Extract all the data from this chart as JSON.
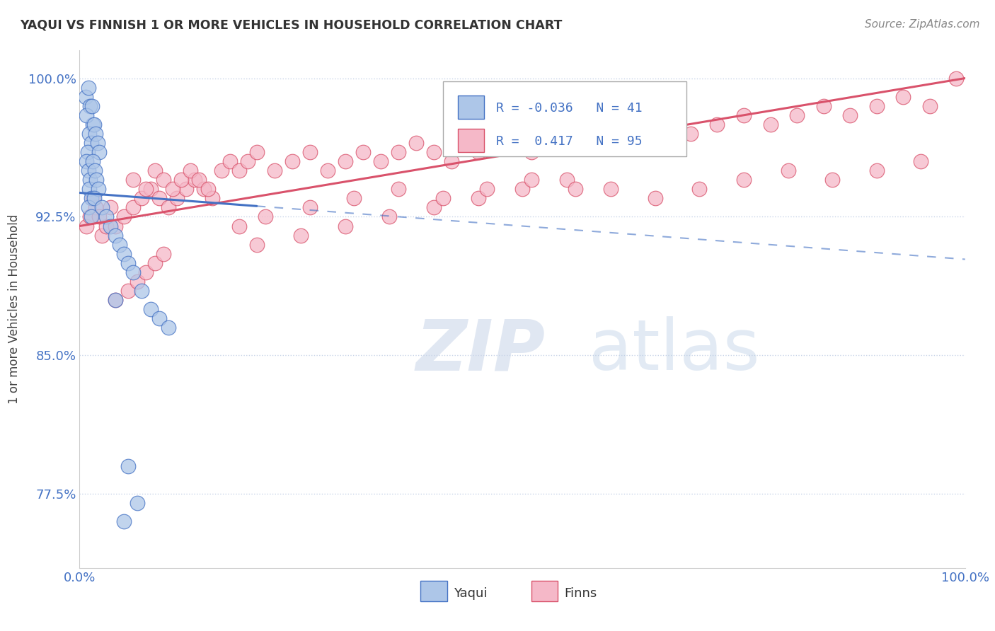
{
  "title": "YAQUI VS FINNISH 1 OR MORE VEHICLES IN HOUSEHOLD CORRELATION CHART",
  "source": "Source: ZipAtlas.com",
  "ylabel": "1 or more Vehicles in Household",
  "watermark_zip": "ZIP",
  "watermark_atlas": "atlas",
  "xlim": [
    0.0,
    1.0
  ],
  "ylim": [
    0.735,
    1.015
  ],
  "yticks": [
    0.775,
    0.85,
    0.925,
    1.0
  ],
  "ytick_labels": [
    "77.5%",
    "85.0%",
    "92.5%",
    "100.0%"
  ],
  "xtick_labels": [
    "0.0%",
    "100.0%"
  ],
  "legend_r_yaqui": "-0.036",
  "legend_n_yaqui": "41",
  "legend_r_finns": "0.417",
  "legend_n_finns": "95",
  "yaqui_color": "#adc6e8",
  "finns_color": "#f5b8c8",
  "yaqui_line_color": "#4472c4",
  "finns_line_color": "#d9526b",
  "background_color": "#ffffff",
  "grid_color": "#c8d4e8",
  "tick_color": "#4472c4",
  "yaqui_x": [
    0.007,
    0.01,
    0.012,
    0.015,
    0.008,
    0.011,
    0.013,
    0.009,
    0.014,
    0.016,
    0.018,
    0.02,
    0.022,
    0.008,
    0.01,
    0.012,
    0.015,
    0.011,
    0.013,
    0.017,
    0.019,
    0.021,
    0.01,
    0.013,
    0.016,
    0.025,
    0.03,
    0.035,
    0.04,
    0.045,
    0.05,
    0.055,
    0.06,
    0.07,
    0.08,
    0.09,
    0.1,
    0.04,
    0.055,
    0.065,
    0.05
  ],
  "yaqui_y": [
    0.99,
    0.995,
    0.985,
    0.975,
    0.98,
    0.97,
    0.965,
    0.96,
    0.985,
    0.975,
    0.97,
    0.965,
    0.96,
    0.955,
    0.95,
    0.945,
    0.955,
    0.94,
    0.935,
    0.95,
    0.945,
    0.94,
    0.93,
    0.925,
    0.935,
    0.93,
    0.925,
    0.92,
    0.915,
    0.91,
    0.905,
    0.9,
    0.895,
    0.885,
    0.875,
    0.87,
    0.865,
    0.88,
    0.79,
    0.77,
    0.76
  ],
  "finns_x": [
    0.008,
    0.012,
    0.018,
    0.025,
    0.03,
    0.015,
    0.022,
    0.035,
    0.04,
    0.05,
    0.06,
    0.07,
    0.08,
    0.09,
    0.1,
    0.11,
    0.12,
    0.13,
    0.14,
    0.15,
    0.06,
    0.075,
    0.085,
    0.095,
    0.105,
    0.115,
    0.125,
    0.135,
    0.145,
    0.16,
    0.17,
    0.18,
    0.19,
    0.2,
    0.22,
    0.24,
    0.26,
    0.28,
    0.3,
    0.32,
    0.34,
    0.36,
    0.38,
    0.4,
    0.42,
    0.45,
    0.48,
    0.51,
    0.54,
    0.57,
    0.6,
    0.63,
    0.66,
    0.69,
    0.72,
    0.75,
    0.78,
    0.81,
    0.84,
    0.87,
    0.9,
    0.93,
    0.96,
    0.99,
    0.04,
    0.055,
    0.065,
    0.075,
    0.085,
    0.095,
    0.2,
    0.25,
    0.3,
    0.35,
    0.4,
    0.45,
    0.5,
    0.55,
    0.6,
    0.65,
    0.7,
    0.75,
    0.8,
    0.85,
    0.9,
    0.95,
    0.18,
    0.21,
    0.26,
    0.31,
    0.36,
    0.41,
    0.46,
    0.51,
    0.56
  ],
  "finns_y": [
    0.92,
    0.925,
    0.93,
    0.915,
    0.92,
    0.935,
    0.925,
    0.93,
    0.92,
    0.925,
    0.93,
    0.935,
    0.94,
    0.935,
    0.93,
    0.935,
    0.94,
    0.945,
    0.94,
    0.935,
    0.945,
    0.94,
    0.95,
    0.945,
    0.94,
    0.945,
    0.95,
    0.945,
    0.94,
    0.95,
    0.955,
    0.95,
    0.955,
    0.96,
    0.95,
    0.955,
    0.96,
    0.95,
    0.955,
    0.96,
    0.955,
    0.96,
    0.965,
    0.96,
    0.955,
    0.96,
    0.965,
    0.96,
    0.965,
    0.97,
    0.965,
    0.97,
    0.975,
    0.97,
    0.975,
    0.98,
    0.975,
    0.98,
    0.985,
    0.98,
    0.985,
    0.99,
    0.985,
    1.0,
    0.88,
    0.885,
    0.89,
    0.895,
    0.9,
    0.905,
    0.91,
    0.915,
    0.92,
    0.925,
    0.93,
    0.935,
    0.94,
    0.945,
    0.94,
    0.935,
    0.94,
    0.945,
    0.95,
    0.945,
    0.95,
    0.955,
    0.92,
    0.925,
    0.93,
    0.935,
    0.94,
    0.935,
    0.94,
    0.945,
    0.94
  ],
  "yaqui_trend_x0": 0.0,
  "yaqui_trend_x_solid_end": 0.2,
  "yaqui_trend_x1": 1.0,
  "yaqui_trend_y0": 0.938,
  "yaqui_trend_y1": 0.902,
  "finns_trend_x0": 0.0,
  "finns_trend_x1": 1.0,
  "finns_trend_y0": 0.92,
  "finns_trend_y1": 1.0
}
